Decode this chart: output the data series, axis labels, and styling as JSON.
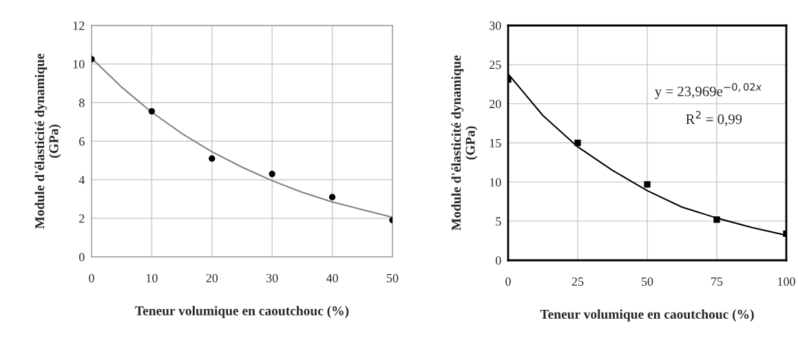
{
  "chart_data": [
    {
      "type": "scatter",
      "xlabel": "Teneur volumique en caoutchouc (%)",
      "ylabel": "Module d'élasticité dynamique\n(GPa)",
      "xlim": [
        0,
        50
      ],
      "xticks": [
        0,
        10,
        20,
        30,
        40,
        50
      ],
      "ylim": [
        0,
        12
      ],
      "yticks": [
        0,
        2,
        4,
        6,
        8,
        10,
        12
      ],
      "grid": true,
      "series": [
        {
          "color": "#000000",
          "marker": "circle",
          "x": [
            0,
            10,
            20,
            30,
            40,
            50
          ],
          "values": [
            10.25,
            7.55,
            5.1,
            4.3,
            3.1,
            1.9
          ]
        },
        {
          "type": "line",
          "color": "#808080",
          "marker": "none",
          "x": [
            0,
            5,
            10,
            15,
            20,
            25,
            30,
            35,
            40,
            45,
            50
          ],
          "values": [
            10.3,
            8.8,
            7.5,
            6.4,
            5.45,
            4.65,
            3.95,
            3.35,
            2.85,
            2.45,
            2.05
          ]
        }
      ]
    },
    {
      "type": "scatter",
      "xlabel": "Teneur volumique en caoutchouc (%)",
      "ylabel": "Module d'élasticité dynamique\n(GPa)",
      "xlim": [
        0,
        100
      ],
      "xticks": [
        0,
        25,
        50,
        75,
        100
      ],
      "ylim": [
        0,
        30
      ],
      "yticks": [
        0,
        5,
        10,
        15,
        20,
        25,
        30
      ],
      "grid": true,
      "annotations": [
        "y = 23,969e$^{−0,02x}$",
        "R$^{2}$ = 0,99"
      ],
      "series": [
        {
          "color": "#000000",
          "marker": "square",
          "x": [
            0,
            25,
            50,
            75,
            100
          ],
          "values": [
            23.1,
            15.0,
            9.7,
            5.2,
            3.4
          ]
        },
        {
          "type": "line",
          "color": "#000000",
          "marker": "none",
          "x": [
            0,
            12.5,
            25,
            37.5,
            50,
            62.5,
            75,
            87.5,
            100
          ],
          "values": [
            23.8,
            18.5,
            14.5,
            11.5,
            8.9,
            6.8,
            5.4,
            4.2,
            3.2
          ]
        }
      ]
    }
  ]
}
